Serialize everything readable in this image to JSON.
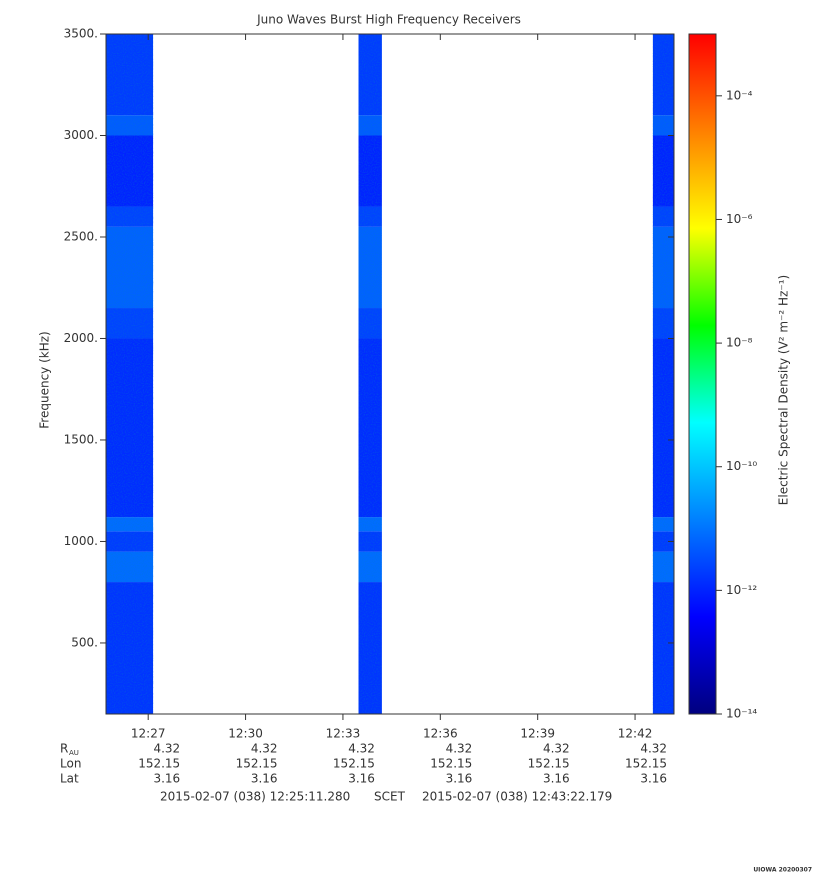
{
  "chart_data": {
    "type": "spectrogram",
    "title": "Juno Waves Burst High Frequency Receivers",
    "ylabel": "Frequency (kHz)",
    "clabel": "Electric Spectral Density (V² m⁻² Hz⁻¹)",
    "xlim": [
      25.7,
      43.2
    ],
    "xticks": [
      {
        "value": 27,
        "label": "12:27"
      },
      {
        "value": 30,
        "label": "12:30"
      },
      {
        "value": 33,
        "label": "12:33"
      },
      {
        "value": 36,
        "label": "12:36"
      },
      {
        "value": 39,
        "label": "12:39"
      },
      {
        "value": 42,
        "label": "12:42"
      }
    ],
    "ylim": [
      150,
      3500
    ],
    "yticks": [
      {
        "value": 500,
        "label": "500."
      },
      {
        "value": 1000,
        "label": "1000."
      },
      {
        "value": 1500,
        "label": "1500."
      },
      {
        "value": 2000,
        "label": "2000."
      },
      {
        "value": 2500,
        "label": "2500."
      },
      {
        "value": 3000,
        "label": "3000."
      },
      {
        "value": 3500,
        "label": "3500."
      }
    ],
    "bursts": [
      [
        25.7,
        27.15
      ],
      [
        33.48,
        34.2
      ],
      [
        42.55,
        43.2
      ]
    ],
    "profile": {
      "freq_edges": [
        150,
        800,
        950,
        1050,
        1120,
        2000,
        2150,
        2550,
        2650,
        3000,
        3100,
        3500
      ],
      "values": [
        1.6e-12,
        8e-12,
        2e-12,
        8e-12,
        1.3e-12,
        2.5e-12,
        6e-12,
        2.5e-12,
        1e-12,
        5e-12,
        2e-12
      ]
    },
    "clog": true,
    "clim": [
      1e-14,
      0.001
    ],
    "cticks": [
      {
        "value": 1e-14,
        "label": "10⁻¹⁴"
      },
      {
        "value": 1e-12,
        "label": "10⁻¹²"
      },
      {
        "value": 1e-10,
        "label": "10⁻¹⁰"
      },
      {
        "value": 1e-08,
        "label": "10⁻⁸"
      },
      {
        "value": 1e-06,
        "label": "10⁻⁶"
      },
      {
        "value": 0.0001,
        "label": "10⁻⁴"
      }
    ],
    "colormap": [
      "#00007f",
      "#0000ff",
      "#0080ff",
      "#00ffff",
      "#00ff00",
      "#ffff00",
      "#ff8000",
      "#ff0000"
    ],
    "ephemeris": [
      {
        "label": "R",
        "sub": "AU",
        "values": [
          "4.32",
          "4.32",
          "4.32",
          "4.32",
          "4.32",
          "4.32"
        ]
      },
      {
        "label": "Lon",
        "values": [
          "152.15",
          "152.15",
          "152.15",
          "152.15",
          "152.15",
          "152.15"
        ]
      },
      {
        "label": "Lat",
        "values": [
          "3.16",
          "3.16",
          "3.16",
          "3.16",
          "3.16",
          "3.16"
        ]
      }
    ],
    "footer": {
      "start": "2015-02-07 (038) 12:25:11.280",
      "middle": "SCET",
      "end": "2015-02-07 (038) 12:43:22.179"
    },
    "corner": "UIOWA 20200307"
  }
}
